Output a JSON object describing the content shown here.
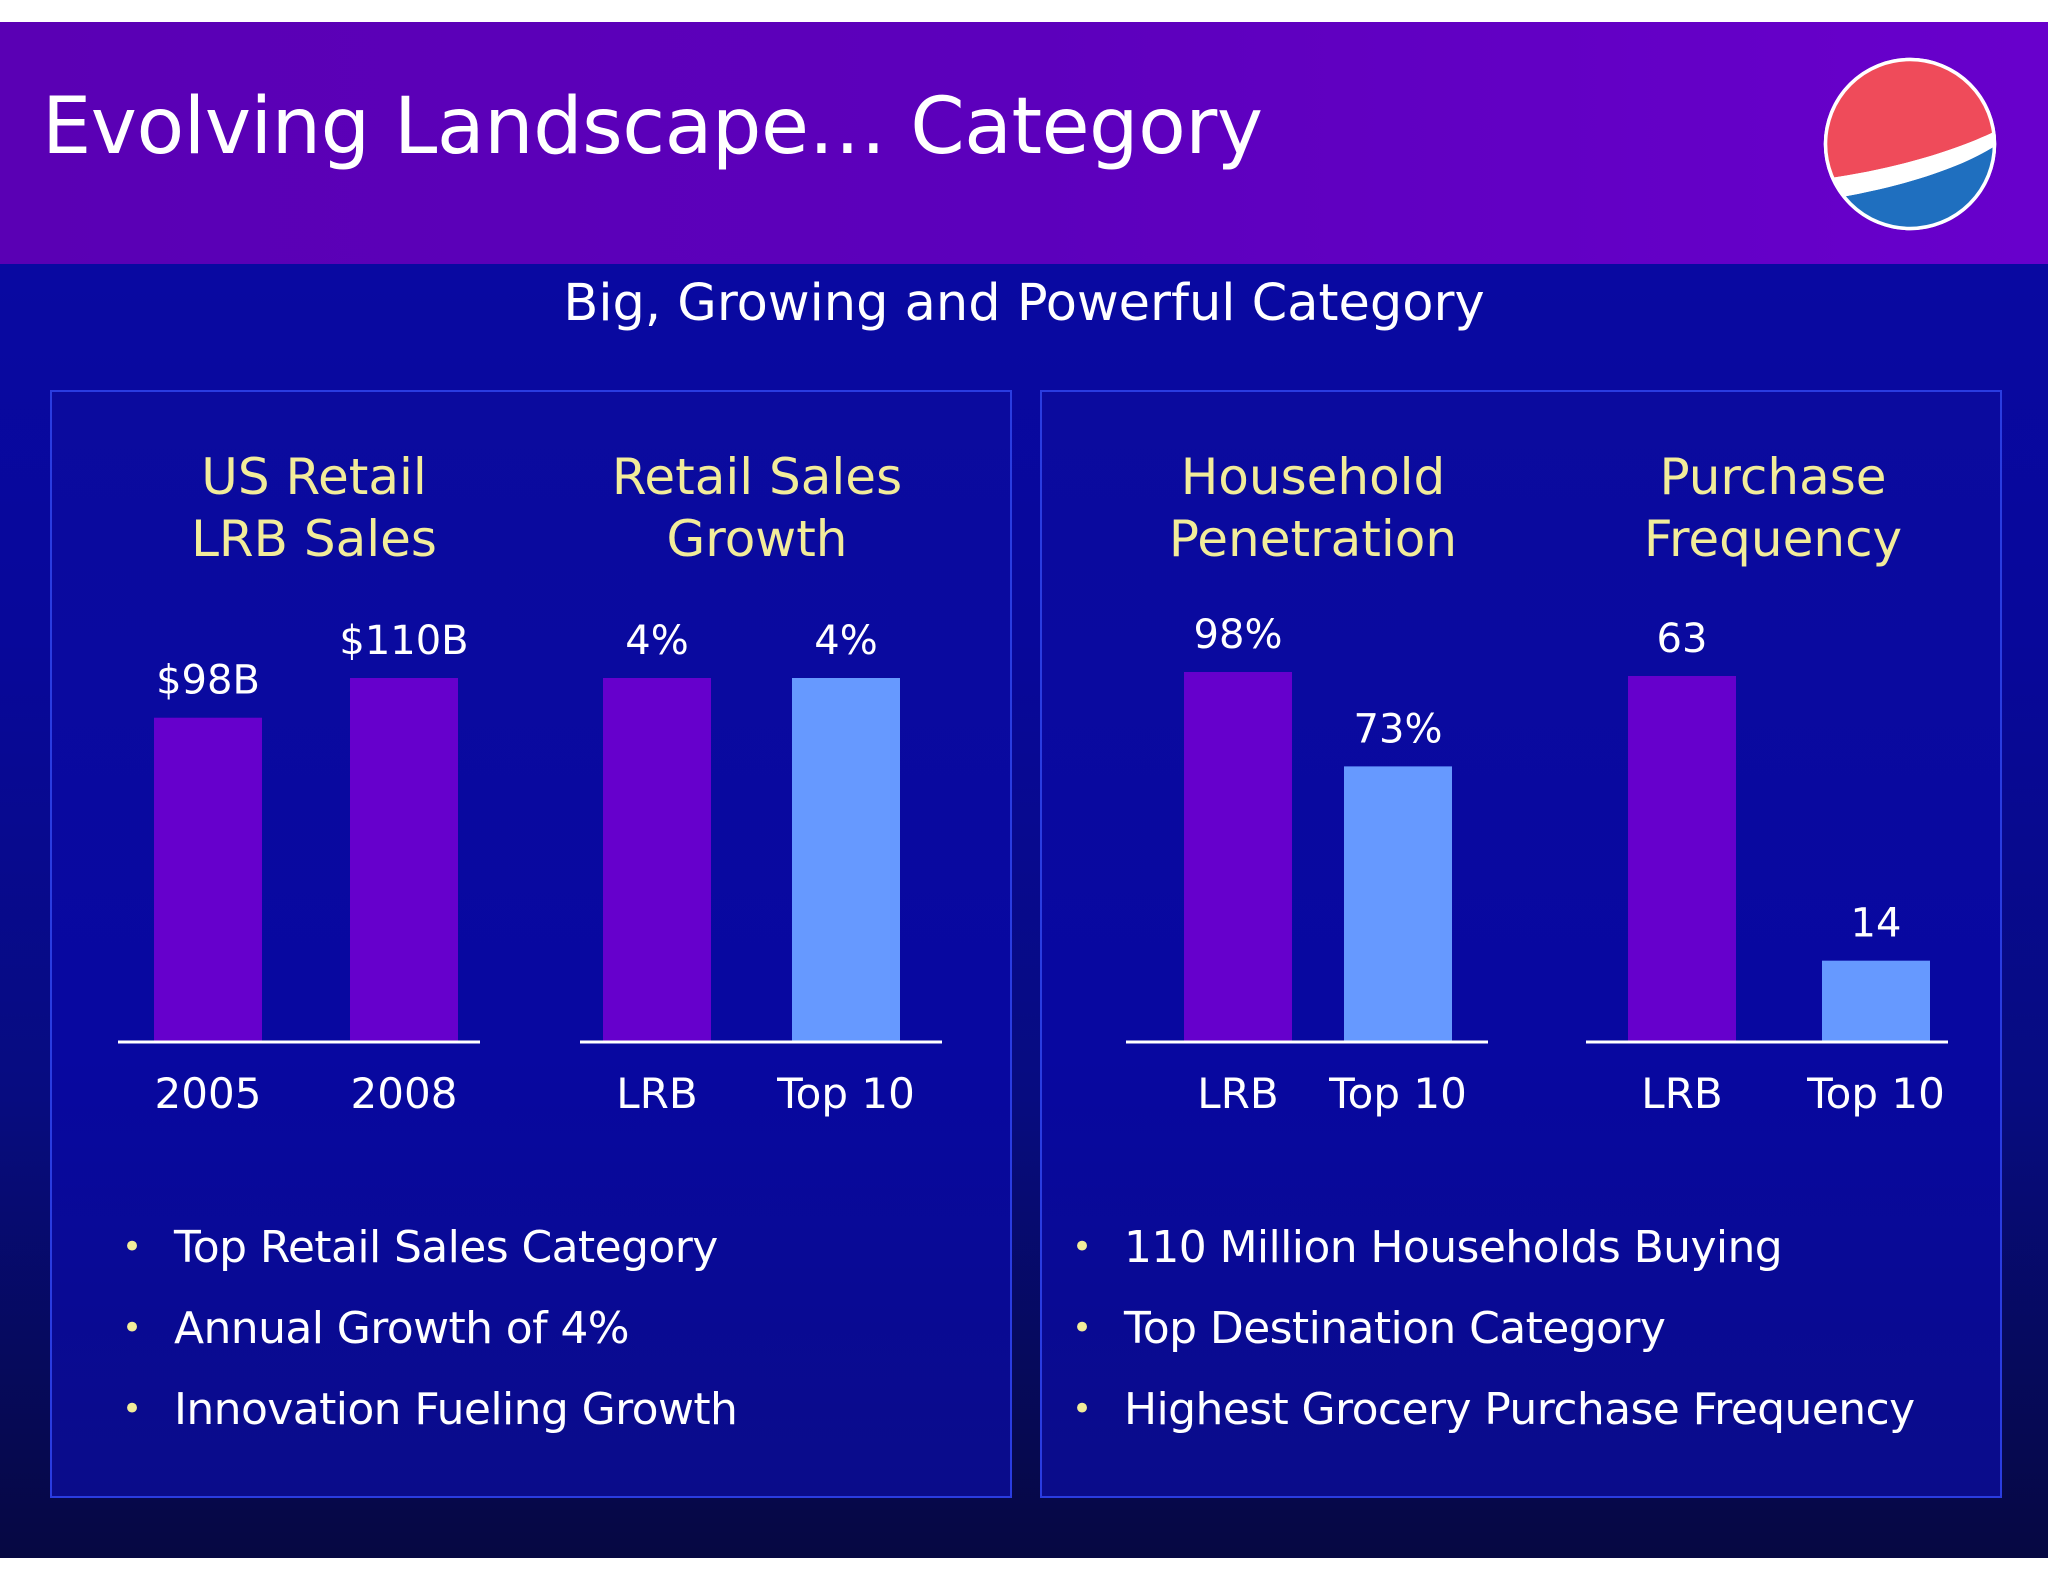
{
  "header": {
    "title": "Evolving Landscape… Category",
    "logo_icon": "pepsi-globe-logo"
  },
  "subtitle": "Big, Growing and Powerful Category",
  "colors": {
    "header_purple": "#5c00bc",
    "background_blue": "#0a0aa6",
    "lrb_bar": "#6600cc",
    "top10_bar": "#6699ff",
    "chart_title": "#f2ec9a",
    "text": "#ffffff"
  },
  "chart_data": [
    {
      "type": "bar",
      "title": "US Retail LRB Sales",
      "title_lines": [
        "US Retail",
        "LRB Sales"
      ],
      "categories": [
        "2005",
        "2008"
      ],
      "values": [
        98,
        110
      ],
      "value_labels": [
        "$98B",
        "$110B"
      ],
      "unit": "$B",
      "bar_colors": [
        "#6600cc",
        "#6600cc"
      ]
    },
    {
      "type": "bar",
      "title": "Retail Sales Growth",
      "title_lines": [
        "Retail Sales",
        "Growth"
      ],
      "categories": [
        "LRB",
        "Top 10"
      ],
      "values": [
        4,
        4
      ],
      "value_labels": [
        "4%",
        "4%"
      ],
      "unit": "%",
      "bar_colors": [
        "#6600cc",
        "#6699ff"
      ]
    },
    {
      "type": "bar",
      "title": "Household Penetration",
      "title_lines": [
        "Household",
        "Penetration"
      ],
      "categories": [
        "LRB",
        "Top 10"
      ],
      "values": [
        98,
        73
      ],
      "value_labels": [
        "98%",
        "73%"
      ],
      "unit": "%",
      "bar_colors": [
        "#6600cc",
        "#6699ff"
      ]
    },
    {
      "type": "bar",
      "title": "Purchase Frequency",
      "title_lines": [
        "Purchase",
        "Frequency"
      ],
      "categories": [
        "LRB",
        "Top 10"
      ],
      "values": [
        63,
        14
      ],
      "value_labels": [
        "63",
        "14"
      ],
      "unit": "",
      "bar_colors": [
        "#6600cc",
        "#6699ff"
      ]
    }
  ],
  "bullets_left": [
    "Top Retail Sales Category",
    "Annual Growth of 4%",
    "Innovation Fueling Growth"
  ],
  "bullets_right": [
    "110 Million Households Buying",
    "Top Destination Category",
    "Highest Grocery Purchase Frequency"
  ]
}
